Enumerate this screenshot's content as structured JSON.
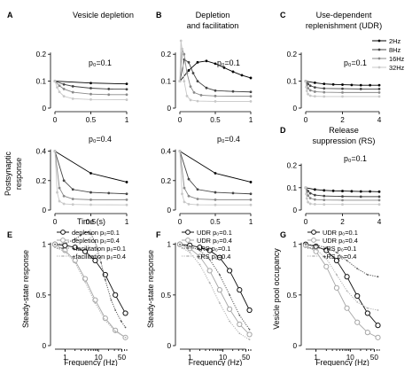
{
  "colors": {
    "c2": "#000000",
    "c8": "#444444",
    "c16": "#8a8a8a",
    "c32": "#c8c8c8",
    "p01": "#111111",
    "p04": "#a6a6a6",
    "facil01": "#555555",
    "facil04": "#b0b0b0"
  },
  "legend_freq": [
    "2Hz",
    "8Hz",
    "16Hz",
    "32Hz"
  ],
  "shared_labels": {
    "ylabel_postsynaptic": "Postsynaptic response",
    "xlabel_time": "Time (s)"
  },
  "chart_data": [
    {
      "id": "A1",
      "letter": "A",
      "type": "line",
      "title": "Vesicle depletion",
      "annotation": "p₀=0.1",
      "xlim": [
        0,
        1
      ],
      "ylim": [
        0,
        0.25
      ],
      "xticks": [
        0,
        0.5,
        1
      ],
      "yticks": [
        0,
        0.1,
        0.2
      ],
      "series": [
        {
          "name": "2Hz",
          "color": "c2",
          "x": [
            0,
            0.5,
            1
          ],
          "y": [
            0.1,
            0.093,
            0.09
          ]
        },
        {
          "name": "8Hz",
          "color": "c8",
          "x": [
            0,
            0.125,
            0.25,
            0.5,
            0.75,
            1
          ],
          "y": [
            0.1,
            0.088,
            0.081,
            0.074,
            0.071,
            0.07
          ]
        },
        {
          "name": "16Hz",
          "color": "c16",
          "x": [
            0,
            0.0625,
            0.125,
            0.25,
            0.5,
            0.75,
            1
          ],
          "y": [
            0.1,
            0.083,
            0.071,
            0.059,
            0.052,
            0.05,
            0.05
          ]
        },
        {
          "name": "32Hz",
          "color": "c32",
          "x": [
            0,
            0.03125,
            0.0625,
            0.125,
            0.25,
            0.5,
            1
          ],
          "y": [
            0.1,
            0.077,
            0.06,
            0.044,
            0.035,
            0.032,
            0.031
          ]
        }
      ]
    },
    {
      "id": "A2",
      "letter": "",
      "type": "line",
      "title": "",
      "annotation": "p₀=0.4",
      "xlim": [
        0,
        1
      ],
      "ylim": [
        0,
        0.5
      ],
      "xticks": [
        0,
        0.5,
        1
      ],
      "yticks": [
        0,
        0.2,
        0.4
      ],
      "xlabel_key": "xlabel_time",
      "series": [
        {
          "name": "2Hz",
          "color": "c2",
          "x": [
            0,
            0.5,
            1
          ],
          "y": [
            0.4,
            0.25,
            0.19
          ]
        },
        {
          "name": "8Hz",
          "color": "c8",
          "x": [
            0,
            0.125,
            0.25,
            0.5,
            0.75,
            1
          ],
          "y": [
            0.4,
            0.2,
            0.14,
            0.12,
            0.115,
            0.11
          ]
        },
        {
          "name": "16Hz",
          "color": "c16",
          "x": [
            0,
            0.0625,
            0.125,
            0.25,
            0.5,
            1
          ],
          "y": [
            0.4,
            0.15,
            0.095,
            0.075,
            0.07,
            0.07
          ]
        },
        {
          "name": "32Hz",
          "color": "c32",
          "x": [
            0,
            0.03125,
            0.0625,
            0.125,
            0.25,
            0.5,
            1
          ],
          "y": [
            0.4,
            0.12,
            0.06,
            0.042,
            0.038,
            0.036,
            0.035
          ]
        }
      ]
    },
    {
      "id": "B1",
      "letter": "B",
      "type": "line",
      "title": "Depletion and facilitation",
      "annotation": "p₀=0.1",
      "xlim": [
        0,
        1
      ],
      "ylim": [
        0,
        0.25
      ],
      "xticks": [
        0,
        0.5,
        1
      ],
      "yticks": [
        0,
        0.1,
        0.2
      ],
      "series": [
        {
          "name": "2Hz",
          "color": "c2",
          "x": [
            0,
            0.125,
            0.25,
            0.375,
            0.5,
            0.625,
            0.75,
            0.875,
            1
          ],
          "y": [
            0.1,
            0.14,
            0.17,
            0.175,
            0.165,
            0.15,
            0.135,
            0.122,
            0.112
          ]
        },
        {
          "name": "8Hz",
          "color": "c8",
          "x": [
            0,
            0.0625,
            0.125,
            0.1875,
            0.25,
            0.375,
            0.5,
            0.75,
            1
          ],
          "y": [
            0.1,
            0.18,
            0.17,
            0.13,
            0.1,
            0.075,
            0.065,
            0.062,
            0.06
          ]
        },
        {
          "name": "16Hz",
          "color": "c16",
          "x": [
            0,
            0.03,
            0.06,
            0.1,
            0.15,
            0.2,
            0.3,
            0.5,
            1
          ],
          "y": [
            0.1,
            0.22,
            0.2,
            0.13,
            0.08,
            0.058,
            0.048,
            0.045,
            0.044
          ]
        },
        {
          "name": "32Hz",
          "color": "c32",
          "x": [
            0,
            0.015,
            0.03,
            0.06,
            0.1,
            0.15,
            0.25,
            0.5,
            1
          ],
          "y": [
            0.1,
            0.25,
            0.22,
            0.1,
            0.045,
            0.03,
            0.026,
            0.025,
            0.025
          ]
        }
      ]
    },
    {
      "id": "B2",
      "letter": "",
      "type": "line",
      "title": "",
      "annotation": "p₀=0.4",
      "xlim": [
        0,
        1
      ],
      "ylim": [
        0,
        0.5
      ],
      "xticks": [
        0,
        0.5,
        1
      ],
      "yticks": [
        0,
        0.2,
        0.4
      ],
      "series": [
        {
          "name": "2Hz",
          "color": "c2",
          "x": [
            0,
            0.5,
            1
          ],
          "y": [
            0.4,
            0.25,
            0.19
          ]
        },
        {
          "name": "8Hz",
          "color": "c8",
          "x": [
            0,
            0.125,
            0.25,
            0.5,
            0.75,
            1
          ],
          "y": [
            0.4,
            0.21,
            0.14,
            0.12,
            0.115,
            0.11
          ]
        },
        {
          "name": "16Hz",
          "color": "c16",
          "x": [
            0,
            0.0625,
            0.125,
            0.25,
            0.5,
            1
          ],
          "y": [
            0.4,
            0.15,
            0.095,
            0.075,
            0.07,
            0.07
          ]
        },
        {
          "name": "32Hz",
          "color": "c32",
          "x": [
            0,
            0.03125,
            0.0625,
            0.125,
            0.25,
            0.5,
            1
          ],
          "y": [
            0.4,
            0.11,
            0.055,
            0.04,
            0.036,
            0.035,
            0.035
          ]
        }
      ]
    },
    {
      "id": "C",
      "letter": "C",
      "type": "line",
      "title": "Use-dependent replenishment (UDR)",
      "annotation": "p₀=0.1",
      "xlim": [
        0,
        4
      ],
      "ylim": [
        0,
        0.25
      ],
      "xticks": [
        0,
        2,
        4
      ],
      "yticks": [
        0,
        0.1,
        0.2
      ],
      "legend": true,
      "series": [
        {
          "name": "2Hz",
          "color": "c2",
          "x": [
            0,
            0.5,
            1,
            1.5,
            2,
            2.5,
            3,
            3.5,
            4
          ],
          "y": [
            0.1,
            0.094,
            0.09,
            0.088,
            0.087,
            0.086,
            0.085,
            0.085,
            0.085
          ]
        },
        {
          "name": "8Hz",
          "color": "c8",
          "x": [
            0,
            0.125,
            0.25,
            0.5,
            1,
            2,
            3,
            4
          ],
          "y": [
            0.1,
            0.09,
            0.083,
            0.077,
            0.073,
            0.072,
            0.071,
            0.071
          ]
        },
        {
          "name": "16Hz",
          "color": "c16",
          "x": [
            0,
            0.0625,
            0.125,
            0.25,
            0.5,
            1,
            2,
            4
          ],
          "y": [
            0.1,
            0.084,
            0.074,
            0.066,
            0.061,
            0.059,
            0.058,
            0.058
          ]
        },
        {
          "name": "32Hz",
          "color": "c32",
          "x": [
            0,
            0.03125,
            0.0625,
            0.125,
            0.25,
            0.5,
            1,
            2,
            4
          ],
          "y": [
            0.1,
            0.078,
            0.064,
            0.052,
            0.046,
            0.044,
            0.043,
            0.043,
            0.043
          ]
        }
      ]
    },
    {
      "id": "D",
      "letter": "D",
      "type": "line",
      "title": "Release suppression (RS)",
      "annotation": "p₀=0.1",
      "xlim": [
        0,
        4
      ],
      "ylim": [
        0,
        0.25
      ],
      "xticks": [
        0,
        2,
        4
      ],
      "yticks": [
        0,
        0.1,
        0.2
      ],
      "series": [
        {
          "name": "2Hz",
          "color": "c2",
          "x": [
            0,
            0.5,
            1,
            1.5,
            2,
            2.5,
            3,
            3.5,
            4
          ],
          "y": [
            0.1,
            0.092,
            0.088,
            0.086,
            0.085,
            0.084,
            0.083,
            0.083,
            0.082
          ]
        },
        {
          "name": "8Hz",
          "color": "c8",
          "x": [
            0,
            0.125,
            0.25,
            0.5,
            1,
            2,
            3,
            4
          ],
          "y": [
            0.1,
            0.085,
            0.075,
            0.067,
            0.063,
            0.061,
            0.06,
            0.06
          ]
        },
        {
          "name": "16Hz",
          "color": "c16",
          "x": [
            0,
            0.0625,
            0.125,
            0.25,
            0.5,
            1,
            2,
            4
          ],
          "y": [
            0.1,
            0.08,
            0.065,
            0.053,
            0.047,
            0.045,
            0.044,
            0.044
          ]
        },
        {
          "name": "32Hz",
          "color": "c32",
          "x": [
            0,
            0.03125,
            0.0625,
            0.125,
            0.25,
            0.5,
            1,
            2,
            4
          ],
          "y": [
            0.1,
            0.072,
            0.052,
            0.035,
            0.028,
            0.026,
            0.025,
            0.025,
            0.025
          ]
        }
      ]
    },
    {
      "id": "E",
      "letter": "E",
      "type": "line",
      "title": "",
      "annotation": "",
      "xscale": "log",
      "xlim": [
        0.5,
        70
      ],
      "ylim": [
        0,
        1.12
      ],
      "xticks": [
        1,
        10,
        50
      ],
      "yticks": [
        0,
        0.5,
        1
      ],
      "xticklabels": [
        "1",
        "10",
        "50"
      ],
      "xlabel": "Frequency (Hz)",
      "ylabel": "Steady-state response",
      "legend": true,
      "series": [
        {
          "name": "depletion p₀=0.1",
          "style": "open",
          "color": "p01",
          "x": [
            0.5,
            1,
            2,
            4,
            8,
            16,
            32,
            64
          ],
          "y": [
            1.0,
            0.99,
            0.97,
            0.93,
            0.84,
            0.7,
            0.5,
            0.32
          ]
        },
        {
          "name": "depletion p₀=0.4",
          "style": "open",
          "color": "p04",
          "x": [
            0.5,
            1,
            2,
            4,
            8,
            16,
            32,
            64
          ],
          "y": [
            1.0,
            0.94,
            0.84,
            0.66,
            0.45,
            0.27,
            0.15,
            0.08
          ]
        },
        {
          "name": "+facilitation p₀=0.1",
          "style": "dots",
          "color": "facil01",
          "x": [
            0.5,
            1,
            2,
            3,
            4,
            5,
            6,
            8,
            12,
            16,
            24,
            32,
            48,
            64
          ],
          "y": [
            1.0,
            1.01,
            1.05,
            1.09,
            1.12,
            1.12,
            1.1,
            1.02,
            0.82,
            0.65,
            0.45,
            0.35,
            0.24,
            0.18
          ]
        },
        {
          "name": "+facilitation p₀=0.4",
          "style": "dots",
          "color": "facil04",
          "x": [
            0.5,
            1,
            2,
            4,
            8,
            16,
            32,
            64
          ],
          "y": [
            0.97,
            0.93,
            0.82,
            0.63,
            0.42,
            0.25,
            0.14,
            0.08
          ]
        }
      ]
    },
    {
      "id": "F",
      "letter": "F",
      "type": "line",
      "title": "",
      "annotation": "",
      "xscale": "log",
      "xlim": [
        0.5,
        70
      ],
      "ylim": [
        0,
        1.12
      ],
      "xticks": [
        1,
        10,
        50
      ],
      "yticks": [
        0,
        0.5,
        1
      ],
      "xticklabels": [
        "1",
        "10",
        "50"
      ],
      "xlabel": "Frequency (Hz)",
      "ylabel": "Steady-state response",
      "legend": true,
      "series": [
        {
          "name": "UDR p₀=0.1",
          "style": "open",
          "color": "p01",
          "x": [
            0.5,
            1,
            2,
            4,
            8,
            16,
            32,
            64
          ],
          "y": [
            1.0,
            0.99,
            0.97,
            0.94,
            0.87,
            0.74,
            0.55,
            0.35
          ]
        },
        {
          "name": "UDR p₀=0.4",
          "style": "open",
          "color": "p04",
          "x": [
            0.5,
            1,
            2,
            4,
            8,
            16,
            32,
            64
          ],
          "y": [
            1.0,
            0.96,
            0.88,
            0.74,
            0.55,
            0.36,
            0.21,
            0.11
          ]
        },
        {
          "name": "+RS p₀=0.1",
          "style": "dots",
          "color": "facil01",
          "x": [
            0.5,
            1,
            2,
            4,
            8,
            16,
            32,
            64
          ],
          "y": [
            1.0,
            0.98,
            0.94,
            0.85,
            0.7,
            0.5,
            0.3,
            0.16
          ]
        },
        {
          "name": "+RS p₀=0.4",
          "style": "dots",
          "color": "facil04",
          "x": [
            0.5,
            1,
            2,
            4,
            8,
            16,
            32,
            64
          ],
          "y": [
            0.98,
            0.92,
            0.8,
            0.62,
            0.42,
            0.24,
            0.12,
            0.06
          ]
        }
      ]
    },
    {
      "id": "G",
      "letter": "G",
      "type": "line",
      "title": "",
      "annotation": "",
      "xscale": "log",
      "xlim": [
        0.5,
        70
      ],
      "ylim": [
        0,
        1.12
      ],
      "xticks": [
        1,
        10,
        50
      ],
      "yticks": [
        0,
        0.5,
        1
      ],
      "xticklabels": [
        "1",
        "10",
        "50"
      ],
      "xlabel": "Frequency (Hz)",
      "ylabel": "Vesicle pool occupancy",
      "legend": true,
      "series": [
        {
          "name": "UDR p₀=0.1",
          "style": "open",
          "color": "p01",
          "x": [
            0.5,
            1,
            2,
            4,
            8,
            16,
            32,
            64
          ],
          "y": [
            1.0,
            0.98,
            0.94,
            0.84,
            0.68,
            0.49,
            0.32,
            0.2
          ]
        },
        {
          "name": "UDR p₀=0.4",
          "style": "open",
          "color": "p04",
          "x": [
            0.5,
            1,
            2,
            4,
            8,
            16,
            32,
            64
          ],
          "y": [
            0.99,
            0.93,
            0.78,
            0.57,
            0.37,
            0.23,
            0.13,
            0.08
          ]
        },
        {
          "name": "+RS p₀=0.1",
          "style": "dots",
          "color": "facil01",
          "x": [
            0.5,
            1,
            2,
            4,
            8,
            16,
            32,
            64
          ],
          "y": [
            1.0,
            0.99,
            0.97,
            0.92,
            0.84,
            0.76,
            0.7,
            0.68
          ]
        },
        {
          "name": "+RS p₀=0.4",
          "style": "dots",
          "color": "facil04",
          "x": [
            0.5,
            1,
            2,
            4,
            8,
            16,
            32,
            64
          ],
          "y": [
            0.98,
            0.95,
            0.86,
            0.7,
            0.54,
            0.43,
            0.37,
            0.35
          ]
        }
      ]
    }
  ]
}
